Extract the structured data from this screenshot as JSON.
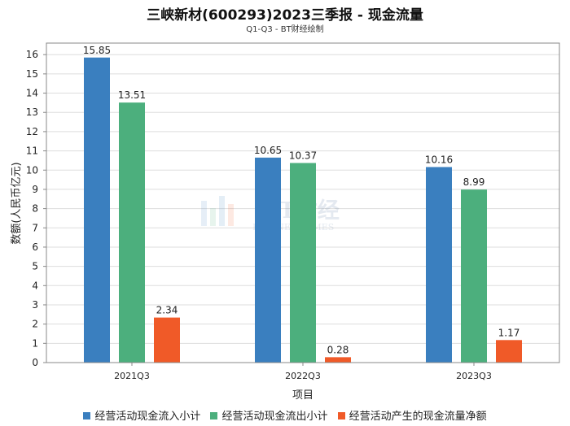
{
  "title": "三峡新材(600293)2023三季报 - 现金流量",
  "subtitle": "Q1-Q3 - BT财经绘制",
  "watermark": {
    "main": "BT财经",
    "sub": "BUSINESSTIMES"
  },
  "colors": {
    "series1": "#3a7fbf",
    "series2": "#4caf7d",
    "series3": "#f05a28",
    "grid": "#dddddd",
    "axis": "#888888"
  },
  "chart_data": {
    "type": "bar",
    "title": "三峡新材(600293)2023三季报 - 现金流量",
    "subtitle": "Q1-Q3 - BT财经绘制",
    "xlabel": "项目",
    "ylabel": "数额(人民币亿元)",
    "categories": [
      "2021Q3",
      "2022Q3",
      "2023Q3"
    ],
    "ylim": [
      0,
      16.6
    ],
    "yticks": [
      0,
      1,
      2,
      3,
      4,
      5,
      6,
      7,
      8,
      9,
      10,
      11,
      12,
      13,
      14,
      15,
      16
    ],
    "grid": true,
    "legend_position": "bottom",
    "series": [
      {
        "name": "经营活动现金流入小计",
        "values": [
          15.85,
          10.65,
          10.16
        ],
        "labels": [
          "15.85",
          "10.65",
          "10.16"
        ]
      },
      {
        "name": "经营活动现金流出小计",
        "values": [
          13.51,
          10.37,
          8.99
        ],
        "labels": [
          "13.51",
          "10.37",
          "8.99"
        ]
      },
      {
        "name": "经营活动产生的现金流量净额",
        "values": [
          2.34,
          0.28,
          1.17
        ],
        "labels": [
          "2.34",
          "0.28",
          "1.17"
        ]
      }
    ]
  }
}
